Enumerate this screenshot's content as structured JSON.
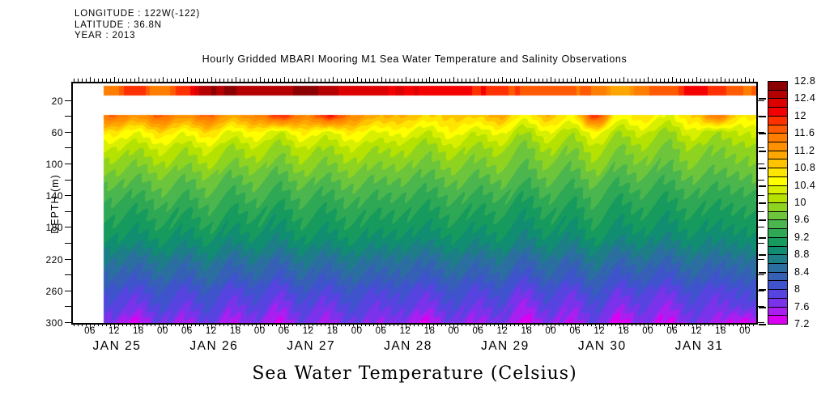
{
  "header": {
    "longitude": "LONGITUDE : 122W(-122)",
    "latitude": "LATITUDE : 36.8N",
    "year": "YEAR : 2013"
  },
  "title": "Hourly Gridded MBARI Mooring M1 Sea Water Temperature and Salinity Observations",
  "footer_title": "Sea Water Temperature (Celsius)",
  "y_axis": {
    "label": "DEPTH (m)",
    "labeled_ticks": [
      20,
      60,
      100,
      140,
      180,
      220,
      260,
      300
    ],
    "tick_step_m": 20,
    "range_m": [
      0,
      300
    ]
  },
  "x_axis": {
    "hour_label_cycle": [
      "06",
      "12",
      "18",
      "00"
    ],
    "major_tick_hours": 6,
    "minor_tick_hours": 1,
    "day_labels": [
      "JAN 25",
      "JAN 26",
      "JAN 27",
      "JAN 28",
      "JAN 29",
      "JAN 30",
      "JAN 31"
    ]
  },
  "colorbar": {
    "labels_top_to_bottom": [
      "12.8",
      "12.4",
      "12",
      "11.6",
      "11.2",
      "10.8",
      "10.4",
      "10",
      "9.6",
      "9.2",
      "8.8",
      "8.4",
      "8",
      "7.6",
      "7.2"
    ]
  },
  "chart_data": {
    "type": "heatmap",
    "title": "Hourly Gridded MBARI Mooring M1 Sea Water Temperature and Salinity Observations",
    "value_label": "Sea Water Temperature (Celsius)",
    "ylabel": "DEPTH (m)",
    "ylim": [
      0,
      300
    ],
    "x_unit": "hours since JAN 25 00:00 (2013)",
    "x_visible_range_hours": [
      2,
      170
    ],
    "data_start_hour": 9.5,
    "levels_min": 7.2,
    "levels_max": 12.8,
    "level_step": 0.2,
    "palette_low_to_high": [
      "#da00f2",
      "#a81ff0",
      "#7a33ea",
      "#5743df",
      "#3f53cd",
      "#3660b6",
      "#2b6fa0",
      "#1d7e88",
      "#118d71",
      "#169a5d",
      "#2ea854",
      "#4bb64d",
      "#6cc53b",
      "#8fd321",
      "#b5e200",
      "#d8f000",
      "#ffff00",
      "#ffe600",
      "#ffc400",
      "#ffa600",
      "#ff9000",
      "#ff7e00",
      "#ff5a00",
      "#ff3000",
      "#f50000",
      "#dd0000",
      "#b40000",
      "#8b0000"
    ],
    "surface_band": {
      "depth_range_m": [
        3,
        14
      ],
      "times_hours": [
        11,
        17,
        23,
        29,
        35,
        41,
        47,
        53,
        59,
        65,
        71,
        77,
        83,
        89,
        95,
        101,
        107,
        113,
        119,
        125,
        131,
        137,
        143,
        149,
        155,
        161,
        167
      ],
      "temps_c": [
        11.5,
        12.0,
        11.45,
        11.9,
        12.55,
        12.65,
        12.45,
        12.5,
        12.7,
        12.5,
        12.3,
        12.25,
        12.2,
        12.15,
        12.1,
        12.0,
        11.9,
        11.75,
        11.7,
        11.65,
        11.6,
        11.05,
        11.6,
        11.7,
        12.1,
        11.9,
        11.6
      ]
    },
    "no_data_band_m": [
      14,
      38
    ],
    "grid": {
      "times_hours": [
        11,
        17,
        23,
        29,
        35,
        41,
        47,
        53,
        59,
        65,
        71,
        77,
        83,
        89,
        95,
        101,
        107,
        113,
        119,
        125,
        131,
        137,
        143,
        149,
        155,
        161,
        167
      ],
      "depths_m": [
        40,
        60,
        80,
        100,
        120,
        140,
        160,
        180,
        200,
        220,
        240,
        260,
        280,
        300
      ],
      "temps_c": [
        [
          11.64,
          11.25,
          11.67,
          11.28,
          11.63,
          11.13,
          11.38,
          11.95,
          11.4,
          12.0,
          11.43,
          11.01,
          11.05,
          10.76,
          10.9,
          10.82,
          11.09,
          10.53,
          10.95,
          10.59,
          11.9,
          10.48,
          10.76,
          10.34,
          10.82,
          11.5,
          10.68
        ],
        [
          10.72,
          10.4,
          10.77,
          10.45,
          10.76,
          10.35,
          10.57,
          10.23,
          10.63,
          10.31,
          10.68,
          10.33,
          10.52,
          10.14,
          10.57,
          10.22,
          10.47,
          10.0,
          10.37,
          10.08,
          10.49,
          10.02,
          10.27,
          9.92,
          10.35,
          10.0,
          10.25
        ],
        [
          10.24,
          10.01,
          10.28,
          10.05,
          10.28,
          9.98,
          10.15,
          9.89,
          10.19,
          9.96,
          10.23,
          9.98,
          10.12,
          9.85,
          10.17,
          9.91,
          10.1,
          9.75,
          10.03,
          9.82,
          10.12,
          9.78,
          9.97,
          9.7,
          10.02,
          9.77,
          9.96
        ],
        [
          9.97,
          9.78,
          10.01,
          9.83,
          10.01,
          9.77,
          9.9,
          9.71,
          9.95,
          9.76,
          9.98,
          9.78,
          9.9,
          9.67,
          9.93,
          9.73,
          9.89,
          9.61,
          9.83,
          9.66,
          9.91,
          9.63,
          9.78,
          9.58,
          9.85,
          9.64,
          9.79
        ],
        [
          9.71,
          9.55,
          9.75,
          9.59,
          9.75,
          9.55,
          9.67,
          9.49,
          9.69,
          9.54,
          9.73,
          9.56,
          9.66,
          9.47,
          9.69,
          9.52,
          9.65,
          9.42,
          9.61,
          9.47,
          9.67,
          9.44,
          9.57,
          9.4,
          9.62,
          9.45,
          9.58
        ],
        [
          9.51,
          9.35,
          9.55,
          9.39,
          9.55,
          9.35,
          9.47,
          9.29,
          9.49,
          9.34,
          9.53,
          9.36,
          9.46,
          9.27,
          9.49,
          9.32,
          9.45,
          9.22,
          9.41,
          9.27,
          9.47,
          9.24,
          9.37,
          9.2,
          9.42,
          9.25,
          9.38
        ],
        [
          9.31,
          9.16,
          9.35,
          9.19,
          9.35,
          9.16,
          9.27,
          9.1,
          9.31,
          9.16,
          9.35,
          9.18,
          9.28,
          9.1,
          9.32,
          9.15,
          9.28,
          9.05,
          9.24,
          9.1,
          9.31,
          9.08,
          9.21,
          9.04,
          9.26,
          9.09,
          9.23
        ],
        [
          9.16,
          9.01,
          9.2,
          9.04,
          9.2,
          9.01,
          9.12,
          8.95,
          9.16,
          9.01,
          9.2,
          9.03,
          9.13,
          8.95,
          9.17,
          9.0,
          9.13,
          8.9,
          9.09,
          8.95,
          9.16,
          8.93,
          9.06,
          8.89,
          9.11,
          8.94,
          9.08
        ],
        [
          8.96,
          8.81,
          9.0,
          8.84,
          9.0,
          8.81,
          8.92,
          8.75,
          8.96,
          8.81,
          9.0,
          8.83,
          8.93,
          8.75,
          8.97,
          8.8,
          8.93,
          8.7,
          8.89,
          8.75,
          8.96,
          8.73,
          8.86,
          8.69,
          8.91,
          8.74,
          8.88
        ],
        [
          8.67,
          8.49,
          8.72,
          8.54,
          8.73,
          8.49,
          8.63,
          8.43,
          8.68,
          8.5,
          8.73,
          8.52,
          8.64,
          8.42,
          8.69,
          8.49,
          8.65,
          8.37,
          8.6,
          8.43,
          8.68,
          8.41,
          8.57,
          8.37,
          8.64,
          8.44,
          8.59
        ],
        [
          8.43,
          8.23,
          8.48,
          8.28,
          8.49,
          8.23,
          8.39,
          8.16,
          8.44,
          8.24,
          8.49,
          8.27,
          8.4,
          8.16,
          8.46,
          8.23,
          8.41,
          8.1,
          8.36,
          8.18,
          8.45,
          8.15,
          8.32,
          8.1,
          8.4,
          8.17,
          8.35
        ],
        [
          8.14,
          7.91,
          8.2,
          7.97,
          8.21,
          7.92,
          8.09,
          7.85,
          8.15,
          7.93,
          8.21,
          7.96,
          8.12,
          7.85,
          8.17,
          7.93,
          8.12,
          7.79,
          8.07,
          7.87,
          8.17,
          7.84,
          8.03,
          7.78,
          8.11,
          7.87,
          8.06
        ],
        [
          7.95,
          7.69,
          8.02,
          7.76,
          8.03,
          7.71,
          7.9,
          7.62,
          7.97,
          7.72,
          8.04,
          7.76,
          7.93,
          7.63,
          8.0,
          7.72,
          7.94,
          7.56,
          7.88,
          7.65,
          7.97,
          7.62,
          7.84,
          7.56,
          7.93,
          7.69,
          7.88
        ],
        [
          7.7,
          7.3,
          7.77,
          7.52,
          7.79,
          7.47,
          7.67,
          7.39,
          7.74,
          7.49,
          7.81,
          7.54,
          7.71,
          7.28,
          7.77,
          7.51,
          7.73,
          7.26,
          7.65,
          7.46,
          7.79,
          7.28,
          7.65,
          7.3,
          7.75,
          7.48,
          7.33
        ]
      ]
    }
  }
}
